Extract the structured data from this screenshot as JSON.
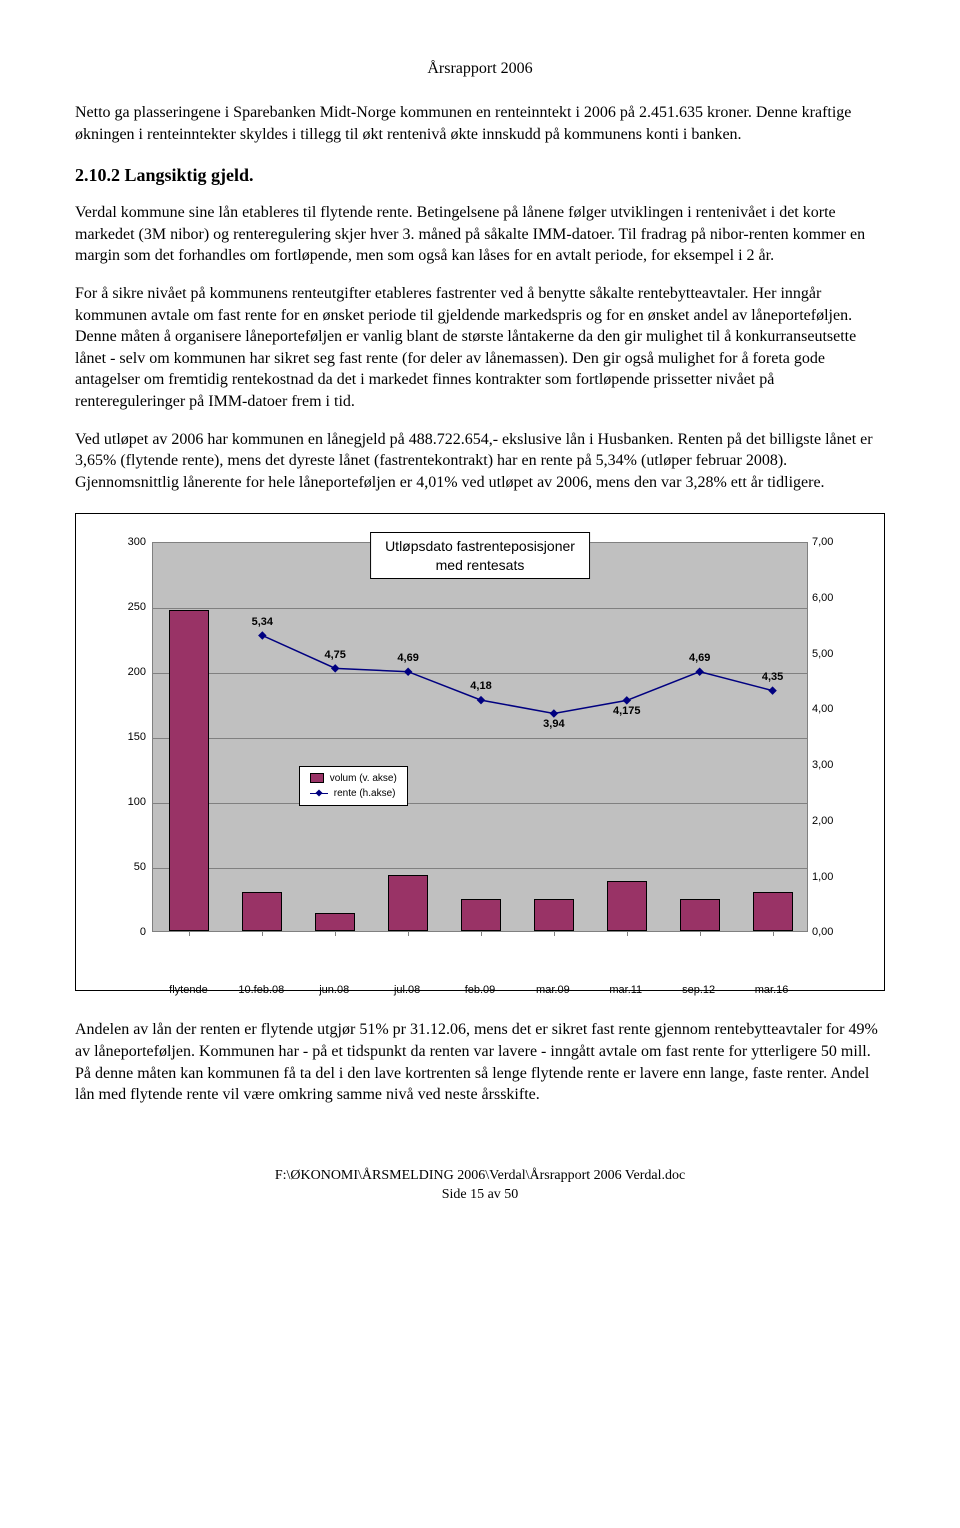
{
  "header": {
    "title": "Årsrapport 2006"
  },
  "body": {
    "p1": "Netto ga plasseringene i Sparebanken Midt-Norge kommunen en renteinntekt i 2006 på 2.451.635 kroner. Denne kraftige økningen i renteinntekter skyldes i tillegg til økt rentenivå økte innskudd på kommunens konti i banken.",
    "section_title": "2.10.2 Langsiktig gjeld.",
    "p2": "Verdal kommune sine lån etableres til flytende rente. Betingelsene på lånene følger utviklingen i rentenivået i det korte markedet (3M nibor) og renteregulering skjer hver 3. måned på såkalte IMM-datoer. Til fradrag på nibor-renten kommer en margin som det forhandles om fortløpende, men som også kan låses for en avtalt periode, for eksempel i 2 år.",
    "p3": "For å sikre nivået på kommunens renteutgifter etableres fastrenter ved å benytte såkalte rentebytteavtaler. Her inngår kommunen avtale om fast rente for en ønsket periode til gjeldende markedspris og for en ønsket andel av låneporteføljen. Denne måten å organisere låneporteføljen er vanlig blant de største låntakerne da den gir mulighet til å konkurranseutsette lånet - selv om kommunen har sikret seg fast rente (for deler av lånemassen). Den gir også mulighet for å foreta gode antagelser om fremtidig rentekostnad da det i markedet finnes kontrakter som fortløpende prissetter nivået på rentereguleringer på IMM-datoer frem i tid.",
    "p4": "Ved utløpet av 2006 har kommunen en lånegjeld på 488.722.654,- ekslusive lån i Husbanken. Renten på det billigste lånet er 3,65% (flytende rente), mens det dyreste lånet (fastrentekontrakt) har en rente på 5,34% (utløper februar 2008). Gjennomsnittlig lånerente for hele låneporteføljen er 4,01% ved utløpet av 2006, mens den var 3,28% ett år tidligere.",
    "p5": "Andelen av lån der renten er flytende utgjør 51% pr 31.12.06, mens det er sikret fast rente gjennom rentebytteavtaler for 49% av låneporteføljen. Kommunen har - på et tidspunkt da renten var lavere - inngått avtale om fast rente for ytterligere 50 mill. På denne måten kan kommunen få ta del i den lave kortrenten så lenge flytende rente er lavere enn lange, faste renter. Andel lån med flytende rente vil være omkring samme nivå ved neste årsskifte."
  },
  "chart": {
    "title_line1": "Utløpsdato fastrenteposisjoner",
    "title_line2": "med rentesats",
    "plot_bg": "#c0c0c0",
    "grid_color": "#808080",
    "bar_color": "#993366",
    "line_color": "#000080",
    "y_left": {
      "min": 0,
      "max": 300,
      "step": 50
    },
    "y_right": {
      "min": 0,
      "max": 7,
      "step": 1
    },
    "categories": [
      "flytende",
      "10.feb.08",
      "jun.08",
      "jul.08",
      "feb.09",
      "mar.09",
      "mar.11",
      "sep.12",
      "mar.16"
    ],
    "bars": [
      247,
      30,
      14,
      43,
      25,
      25,
      39,
      25,
      30
    ],
    "line_values": [
      null,
      5.34,
      4.75,
      4.69,
      4.18,
      3.94,
      4.175,
      4.69,
      4.35
    ],
    "line_labels": [
      "",
      "5,34",
      "4,75",
      "4,69",
      "4,18",
      "3,94",
      "4,175",
      "4,69",
      "4,35"
    ],
    "legend": {
      "volume": "volum (v. akse)",
      "rate": "rente (h.akse)"
    },
    "title_fontsize": 14
  },
  "footer": {
    "path": "F:\\ØKONOMI\\ÅRSMELDING 2006\\Verdal\\Årsrapport 2006 Verdal.doc",
    "page": "Side 15 av 50"
  }
}
